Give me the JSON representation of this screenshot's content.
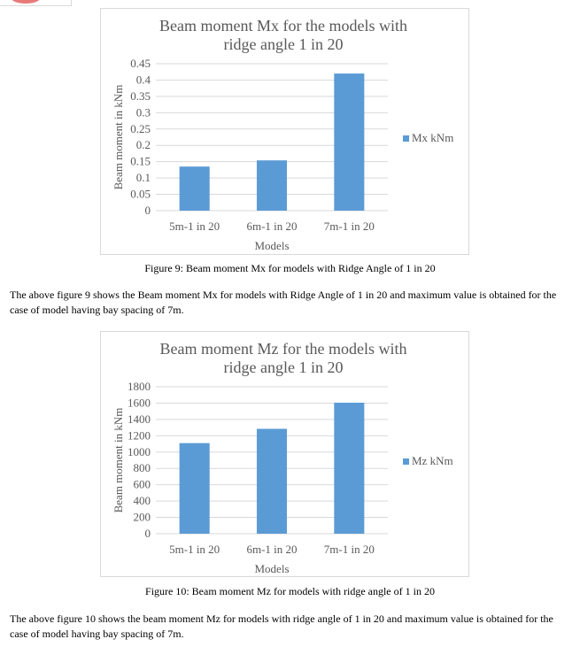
{
  "chart_data": [
    {
      "type": "bar",
      "title": "Beam moment Mx for the models with ridge angle 1 in 20",
      "title_lines": [
        "Beam moment Mx for the models with",
        "ridge angle 1 in 20"
      ],
      "categories": [
        "5m-1 in 20",
        "6m-1 in 20",
        "7m-1 in 20"
      ],
      "series": [
        {
          "name": "Mx kNm",
          "values": [
            0.135,
            0.154,
            0.42
          ]
        }
      ],
      "xlabel": "Models",
      "ylabel": "Beam moment in kNm",
      "ylim": [
        0,
        0.45
      ],
      "yticks": [
        "0",
        "0.05",
        "0.1",
        "0.15",
        "0.2",
        "0.25",
        "0.3",
        "0.35",
        "0.4",
        "0.45"
      ],
      "ytick_values": [
        0,
        0.05,
        0.1,
        0.15,
        0.2,
        0.25,
        0.3,
        0.35,
        0.4,
        0.45
      ],
      "grid": true,
      "legend_position": "right",
      "bar_color": "#5b9bd5"
    },
    {
      "type": "bar",
      "title": "Beam moment Mz for the models with ridge angle 1 in 20",
      "title_lines": [
        "Beam moment Mz for the models with",
        "ridge angle 1 in 20"
      ],
      "categories": [
        "5m-1 in 20",
        "6m-1 in 20",
        "7m-1 in 20"
      ],
      "series": [
        {
          "name": "Mz kNm",
          "values": [
            1110,
            1285,
            1605
          ]
        }
      ],
      "xlabel": "Models",
      "ylabel": "Beam moment in kNm",
      "ylim": [
        0,
        1800
      ],
      "yticks": [
        "0",
        "200",
        "400",
        "600",
        "800",
        "1000",
        "1200",
        "1400",
        "1600",
        "1800"
      ],
      "ytick_values": [
        0,
        200,
        400,
        600,
        800,
        1000,
        1200,
        1400,
        1600,
        1800
      ],
      "grid": true,
      "legend_position": "right",
      "bar_color": "#5b9bd5"
    }
  ],
  "captions": {
    "figure9": "Figure 9: Beam moment Mx for models with Ridge Angle of 1 in 20",
    "figure10": "Figure 10:  Beam moment Mz for models with ridge angle of 1 in 20"
  },
  "paragraphs": {
    "figure9_text": "The above figure 9 shows the Beam moment Mx for models with Ridge Angle of 1 in 20 and maximum value is obtained for the case of model having bay spacing of 7m.",
    "figure10_text": "The above figure 10 shows the beam moment Mz for models with ridge angle of 1 in 20 and maximum value is obtained for the case of model having bay spacing of 7m."
  }
}
